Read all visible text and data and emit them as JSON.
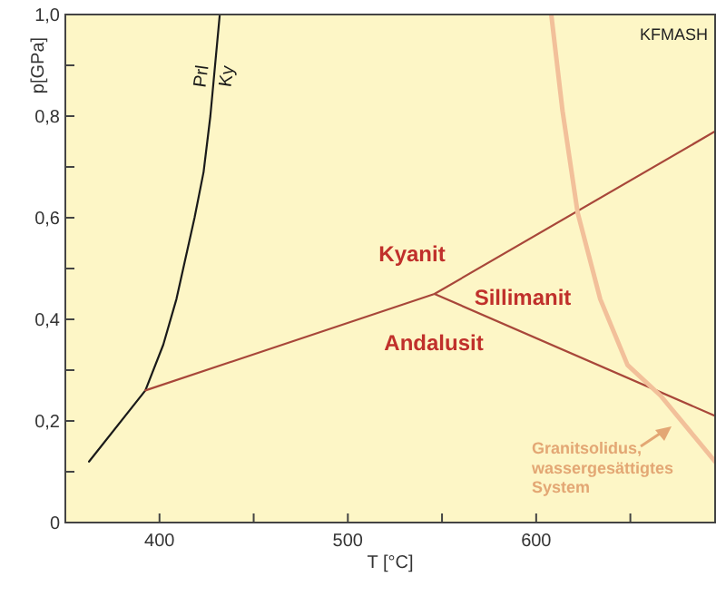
{
  "chart_data": {
    "type": "line",
    "xlabel": "T [°C]",
    "ylabel": "p[GPa]",
    "xlim": [
      350,
      695
    ],
    "xticks": [
      400,
      {
        "value": 450,
        "label": null
      },
      500,
      {
        "value": 550,
        "label": null
      },
      600,
      {
        "value": 650,
        "label": null
      }
    ],
    "ylim": [
      0,
      1
    ],
    "yticks": [
      {
        "value": 0,
        "label": "0"
      },
      {
        "value": 0.1,
        "label": null
      },
      {
        "value": 0.2,
        "label": "0,2"
      },
      {
        "value": 0.3,
        "label": null
      },
      {
        "value": 0.4,
        "label": "0,4"
      },
      {
        "value": 0.5,
        "label": null
      },
      {
        "value": 0.6,
        "label": "0,6"
      },
      {
        "value": 0.7,
        "label": null
      },
      {
        "value": 0.8,
        "label": "0,8"
      },
      {
        "value": 0.9,
        "label": null
      },
      {
        "value": 1.0,
        "label": "1,0"
      }
    ],
    "grid": false,
    "marker": "none",
    "line_style": "solid",
    "series": [
      {
        "type": "line",
        "color": "#1a1a1a",
        "x": [
          362.6,
          392.5,
          402,
          409,
          418.6,
          423.4,
          427,
          432
        ],
        "values": [
          0.12,
          0.26,
          0.35,
          0.44,
          0.6,
          0.69,
          0.8,
          1.0
        ]
      },
      {
        "type": "line",
        "color": "#a8473a",
        "x": [
          392.5,
          546,
          695,
          546,
          695
        ],
        "values": [
          0.26,
          0.45,
          0.77,
          0.45,
          0.21
        ]
      },
      {
        "type": "line",
        "color": "#f2c09a",
        "x": [
          608,
          614,
          622,
          634,
          648.5,
          666,
          695
        ],
        "values": [
          1.0,
          0.81,
          0.61,
          0.44,
          0.31,
          0.25,
          0.12
        ]
      }
    ],
    "annotations": [
      "Prl",
      "Ky",
      "Kyanit",
      "Sillimanit",
      "Andalusit",
      "Granitsolidus,\nwassergesättigtes\nSystem",
      "KFMASH"
    ]
  }
}
